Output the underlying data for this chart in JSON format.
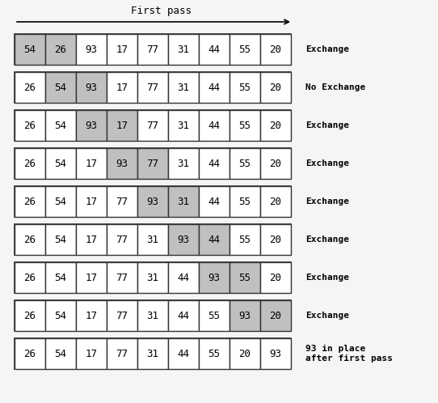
{
  "title": "First pass",
  "rows": [
    [
      54,
      26,
      93,
      17,
      77,
      31,
      44,
      55,
      20
    ],
    [
      26,
      54,
      93,
      17,
      77,
      31,
      44,
      55,
      20
    ],
    [
      26,
      54,
      93,
      17,
      77,
      31,
      44,
      55,
      20
    ],
    [
      26,
      54,
      17,
      93,
      77,
      31,
      44,
      55,
      20
    ],
    [
      26,
      54,
      17,
      77,
      93,
      31,
      44,
      55,
      20
    ],
    [
      26,
      54,
      17,
      77,
      31,
      93,
      44,
      55,
      20
    ],
    [
      26,
      54,
      17,
      77,
      31,
      44,
      93,
      55,
      20
    ],
    [
      26,
      54,
      17,
      77,
      31,
      44,
      55,
      93,
      20
    ],
    [
      26,
      54,
      17,
      77,
      31,
      44,
      55,
      20,
      93
    ]
  ],
  "highlighted_pairs": [
    [
      0,
      1
    ],
    [
      1,
      2
    ],
    [
      2,
      3
    ],
    [
      3,
      4
    ],
    [
      4,
      5
    ],
    [
      5,
      6
    ],
    [
      6,
      7
    ],
    [
      7,
      8
    ],
    []
  ],
  "labels": [
    "Exchange",
    "No Exchange",
    "Exchange",
    "Exchange",
    "Exchange",
    "Exchange",
    "Exchange",
    "Exchange",
    "93 in place\nafter first pass"
  ],
  "highlight_color": "#c0c0c0",
  "normal_color": "#ffffff",
  "cell_edge_color": "#333333",
  "outer_edge_color": "#333333",
  "text_color": "#000000",
  "bg_color": "#f5f5f5",
  "arrow_color": "#000000",
  "title_fontsize": 9,
  "label_fontsize": 8,
  "cell_fontsize": 9
}
